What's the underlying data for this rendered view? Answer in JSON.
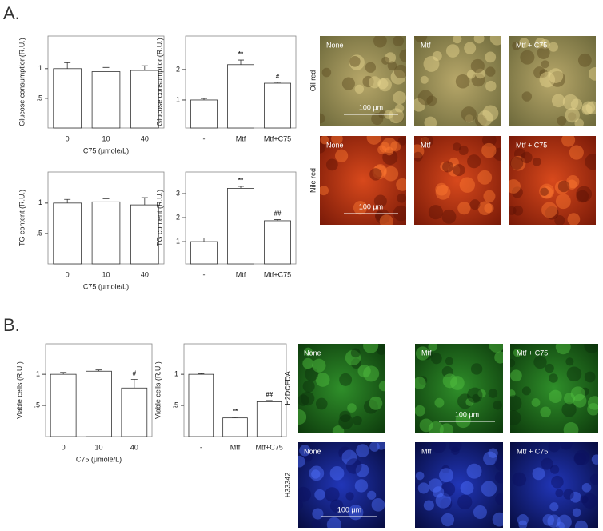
{
  "panel_labels": [
    "A.",
    "B."
  ],
  "chart_data": [
    {
      "type": "bar",
      "ylabel": "Glucose consumption(R.U.)",
      "xlabel": "C75 (μmole/L)",
      "categories": [
        "0",
        "10",
        "40"
      ],
      "values": [
        1.0,
        0.95,
        0.97
      ],
      "errors": [
        0.1,
        0.07,
        0.08
      ],
      "annotations": [
        null,
        null,
        null
      ],
      "ylim": [
        0,
        1.55
      ],
      "yticks": [
        {
          "value": 0.5,
          "label": ".5"
        },
        1
      ],
      "color": "#ffffff"
    },
    {
      "type": "bar",
      "ylabel": "Glucose consumption(R.U.)",
      "categories": [
        "-",
        "Mtf",
        "Mtf+C75"
      ],
      "values": [
        1.0,
        2.16,
        1.55
      ],
      "errors": [
        0.05,
        0.15,
        0.03
      ],
      "annotations": [
        null,
        "**",
        "#"
      ],
      "ylim": [
        0.08,
        3.1
      ],
      "yticks": [
        1,
        2
      ],
      "color": "#ffffff"
    },
    {
      "type": "bar",
      "ylabel": "TG content (R.U.)",
      "xlabel": "C75 (μmole/L)",
      "categories": [
        "0",
        "10",
        "40"
      ],
      "values": [
        1.0,
        1.02,
        0.97
      ],
      "errors": [
        0.06,
        0.05,
        0.12
      ],
      "annotations": [
        null,
        null,
        null
      ],
      "ylim": [
        0,
        1.51
      ],
      "yticks": [
        {
          "value": 0.5,
          "label": ".5"
        },
        1
      ],
      "color": "#ffffff"
    },
    {
      "type": "bar",
      "ylabel": "TG content (R.U.)",
      "categories": [
        "-",
        "Mtf",
        "Mtf+C75"
      ],
      "values": [
        1.0,
        3.22,
        1.87
      ],
      "errors": [
        0.15,
        0.08,
        0.05
      ],
      "annotations": [
        null,
        "**",
        "##"
      ],
      "ylim": [
        0.07,
        3.9
      ],
      "yticks": [
        1,
        2,
        3
      ],
      "color": "#ffffff"
    },
    {
      "type": "bar",
      "ylabel": "Viable cells (R.U.)",
      "xlabel": "C75 (μmole/L)",
      "categories": [
        "0",
        "10",
        "40"
      ],
      "values": [
        1.0,
        1.05,
        0.78
      ],
      "errors": [
        0.03,
        0.02,
        0.14
      ],
      "annotations": [
        null,
        null,
        "#"
      ],
      "ylim": [
        0,
        1.49
      ],
      "yticks": [
        {
          "value": 0.5,
          "label": ".5"
        },
        1
      ],
      "color": "#ffffff"
    },
    {
      "type": "bar",
      "ylabel": "Viable cells (R.U.)",
      "categories": [
        "-",
        "Mtf",
        "Mtf+C75"
      ],
      "values": [
        1.0,
        0.3,
        0.56
      ],
      "errors": [
        0.01,
        0.01,
        0.02
      ],
      "annotations": [
        null,
        "**",
        "##"
      ],
      "ylim": [
        0,
        1.49
      ],
      "yticks": [
        {
          "value": 0.5,
          "label": ".5"
        },
        1
      ],
      "color": "#ffffff"
    }
  ],
  "images": [
    {
      "row_label": "Oil red",
      "panel_labels": [
        "None",
        "Mtf",
        "Mtf + C75"
      ],
      "scale_bar": "100 μm"
    },
    {
      "row_label": "Nile red",
      "panel_labels": [
        "None",
        "Mtf",
        "Mtf + C75"
      ],
      "scale_bar": "100 μm"
    },
    {
      "row_label": "H2DCFDA",
      "panel_labels": [
        "None",
        "Mtf",
        "Mtf + C75"
      ],
      "scale_bar": "100 μm"
    },
    {
      "row_label": "H33342",
      "panel_labels": [
        "None",
        "Mtf",
        "Mtf + C75"
      ],
      "scale_bar": "100 μm"
    }
  ]
}
